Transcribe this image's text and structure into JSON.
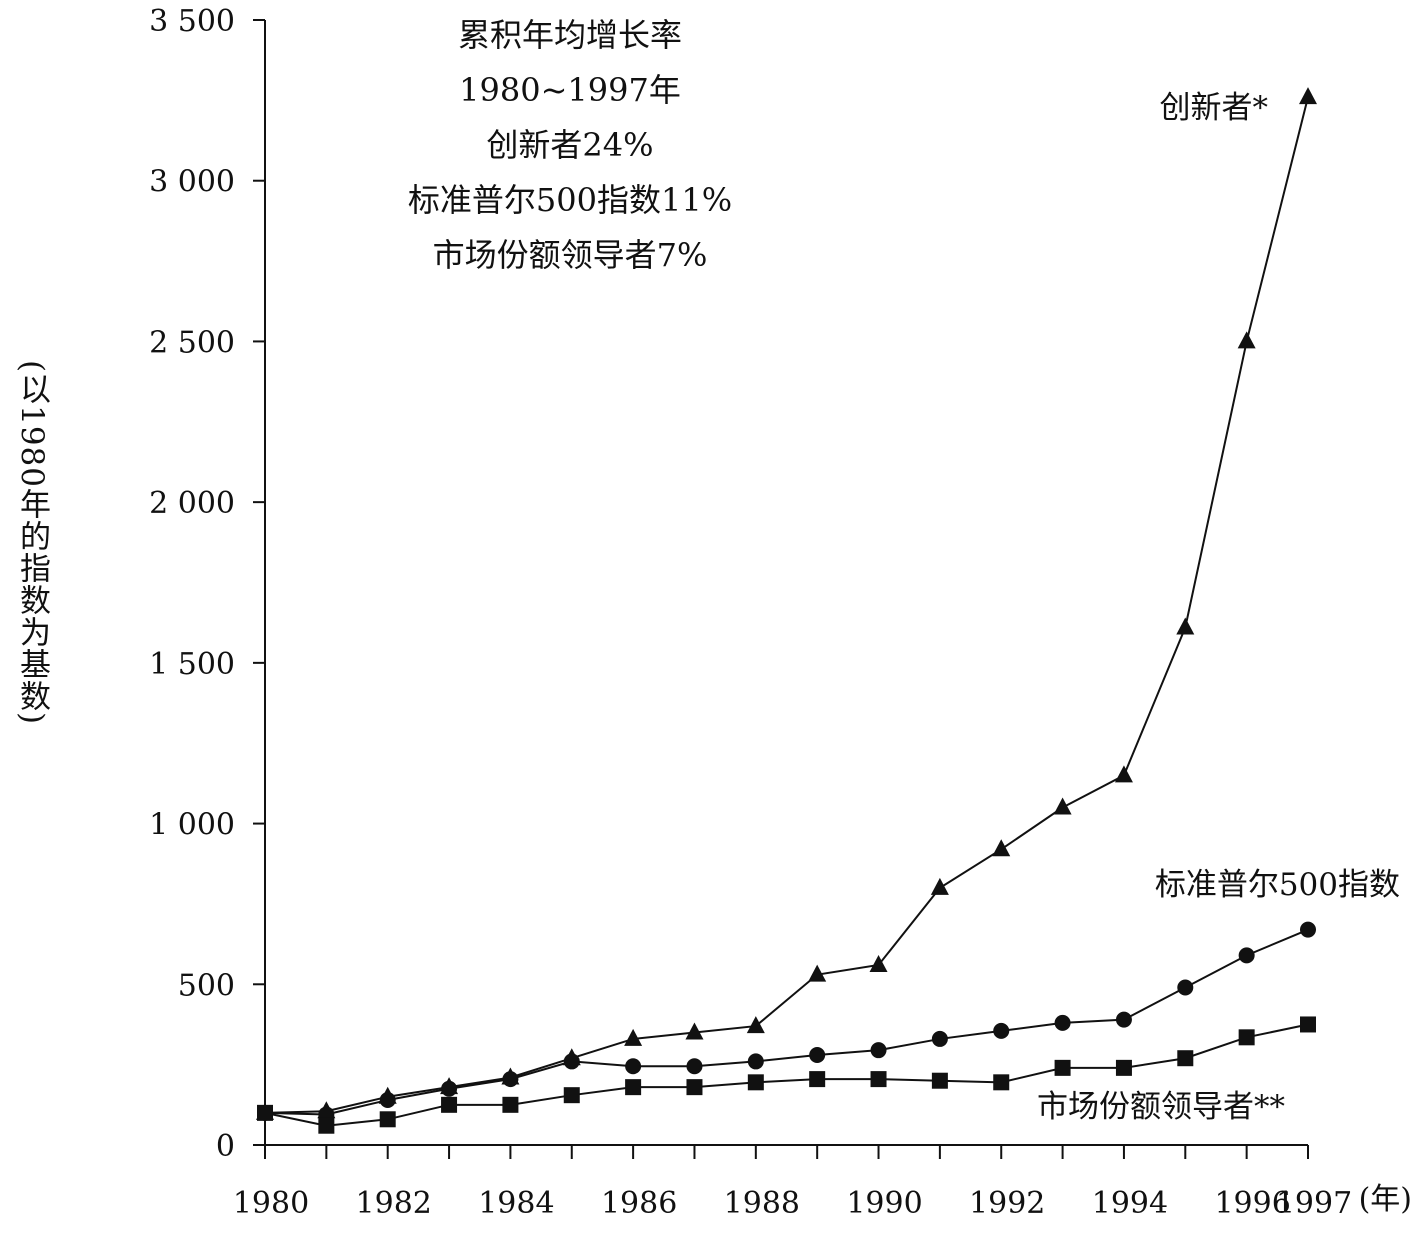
{
  "chart_data": {
    "type": "line",
    "annotation": [
      "累积年均增长率",
      "1980~1997年",
      "创新者24%",
      "标准普尔500指数11%",
      "市场份额领导者7%"
    ],
    "ylabel": "(以1980年的指数为基数)",
    "xlabel": "(年)",
    "ylim": [
      0,
      3500
    ],
    "yticks": [
      0,
      500,
      1000,
      1500,
      2000,
      2500,
      3000,
      3500
    ],
    "ytick_labels": [
      "0",
      "500",
      "1 000",
      "1 500",
      "2 000",
      "2 500",
      "3 000",
      "3 500"
    ],
    "x": [
      1980,
      1981,
      1982,
      1983,
      1984,
      1985,
      1986,
      1987,
      1988,
      1989,
      1990,
      1991,
      1992,
      1993,
      1994,
      1995,
      1996,
      1997
    ],
    "xtick_labels": [
      "1980",
      "1982",
      "1984",
      "1986",
      "1988",
      "1990",
      "1992",
      "1994",
      "1996",
      "1997"
    ],
    "xtick_values": [
      1980,
      1982,
      1984,
      1986,
      1988,
      1990,
      1992,
      1994,
      1996,
      1997
    ],
    "series": [
      {
        "name": "创新者*",
        "marker": "triangle",
        "values": [
          100,
          105,
          150,
          180,
          210,
          270,
          330,
          350,
          370,
          530,
          560,
          800,
          920,
          1050,
          1150,
          1610,
          2500,
          3260
        ]
      },
      {
        "name": "标准普尔500指数",
        "marker": "circle",
        "values": [
          100,
          95,
          140,
          175,
          205,
          260,
          245,
          245,
          260,
          280,
          295,
          330,
          355,
          380,
          390,
          490,
          590,
          670
        ]
      },
      {
        "name": "市场份额领导者**",
        "marker": "square",
        "values": [
          100,
          60,
          80,
          125,
          125,
          155,
          180,
          180,
          195,
          205,
          205,
          200,
          195,
          240,
          240,
          270,
          335,
          375
        ]
      }
    ]
  }
}
